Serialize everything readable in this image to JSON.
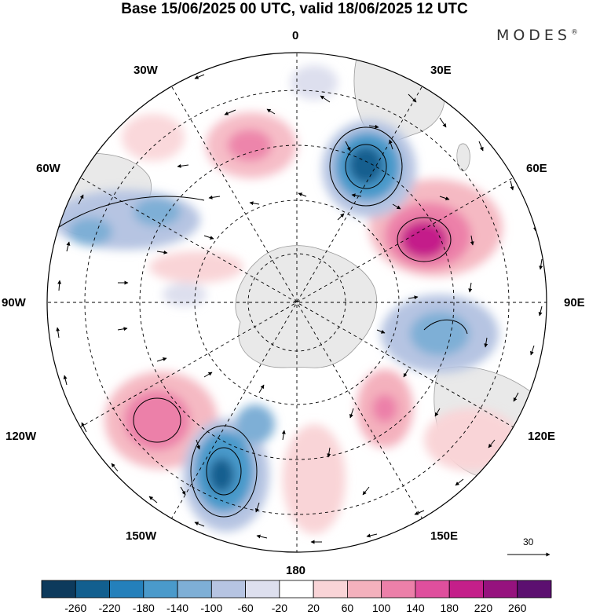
{
  "title": "Base 15/06/2025 00 UTC, valid 18/06/2025 12 UTC",
  "brand": "MODES",
  "brand_mark": "®",
  "meridian_labels": {
    "lon0": "0",
    "lon30e": "30E",
    "lon60e": "60E",
    "lon90e": "90E",
    "lon120e": "120E",
    "lon150e": "150E",
    "lon180": "180",
    "lon150w": "150W",
    "lon120w": "120W",
    "lon90w": "90W",
    "lon60w": "60W",
    "lon30w": "30W"
  },
  "vector_scale_label": "30",
  "colorbar": {
    "ticks": [
      "-260",
      "-220",
      "-180",
      "-140",
      "-100",
      "-60",
      "-20",
      "20",
      "60",
      "100",
      "140",
      "180",
      "220",
      "260"
    ],
    "colors": [
      "#0d3a5c",
      "#125f8f",
      "#2480bb",
      "#4a9acb",
      "#7eafd6",
      "#b6c4e2",
      "#dddfee",
      "#ffffff",
      "#f9d4d7",
      "#f4b1bd",
      "#ec80a9",
      "#df4f9d",
      "#c41f8a",
      "#96127e",
      "#5c1070"
    ]
  },
  "colors": {
    "land": "#e9e9e9",
    "coast": "#9a9a9a",
    "grid": "#000000"
  }
}
